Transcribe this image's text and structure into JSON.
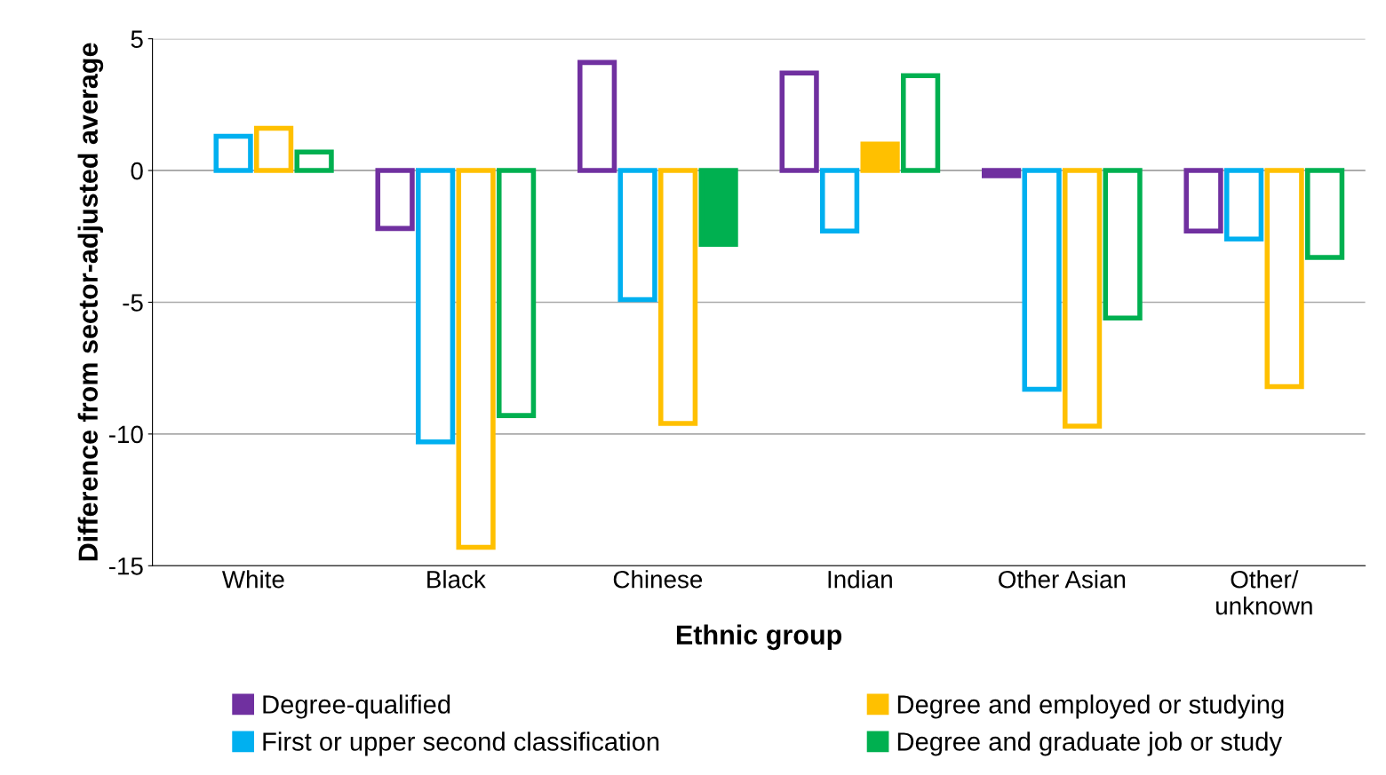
{
  "chart_data": {
    "type": "bar",
    "xlabel": "Ethnic group",
    "ylabel": "Difference from sector-adjusted average",
    "categories": [
      "White",
      "Black",
      "Chinese",
      "Indian",
      "Other Asian",
      "Other/\nunknown"
    ],
    "series": [
      {
        "name": "Degree-qualified",
        "color": "#7030a0",
        "values": [
          null,
          -2.2,
          4.1,
          3.7,
          -0.2,
          -2.3
        ],
        "colors": [
          "#ffffff",
          "#ffffff",
          "#ffffff",
          "#ffffff",
          "#7030a0",
          "#ffffff"
        ]
      },
      {
        "name": "First or upper second classification",
        "color": "#00b0f0",
        "values": [
          1.3,
          -10.3,
          -4.9,
          -2.3,
          -8.3,
          -2.6
        ],
        "colors": [
          "#ffffff",
          "#ffffff",
          "#ffffff",
          "#ffffff",
          "#ffffff",
          "#ffffff"
        ]
      },
      {
        "name": "Degree and employed or studying",
        "color": "#ffc000",
        "values": [
          1.6,
          -14.3,
          -9.6,
          1.0,
          -9.7,
          -8.2
        ],
        "colors": [
          "#ffffff",
          "#ffffff",
          "#ffffff",
          "#ffc000",
          "#ffffff",
          "#ffffff"
        ]
      },
      {
        "name": "Degree and graduate job or study",
        "color": "#00b050",
        "values": [
          0.7,
          -9.3,
          -2.8,
          3.6,
          -5.6,
          -3.3
        ],
        "colors": [
          "#ffffff",
          "#ffffff",
          "#00b050",
          "#ffffff",
          "#ffffff",
          "#ffffff"
        ]
      }
    ],
    "ylim": [
      -15,
      5
    ],
    "yticks": [
      -15,
      -10,
      -5,
      0,
      5
    ],
    "grid": "y",
    "legend": "bottom"
  }
}
